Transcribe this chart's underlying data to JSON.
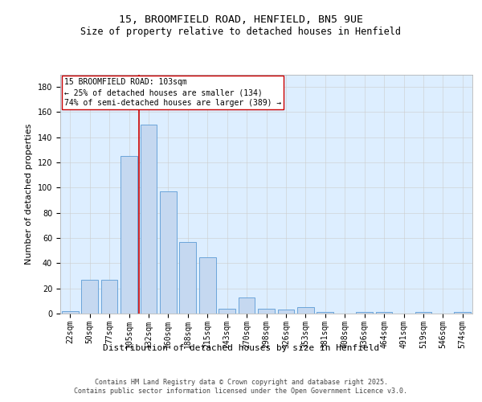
{
  "title_line1": "15, BROOMFIELD ROAD, HENFIELD, BN5 9UE",
  "title_line2": "Size of property relative to detached houses in Henfield",
  "xlabel": "Distribution of detached houses by size in Henfield",
  "ylabel": "Number of detached properties",
  "bar_labels": [
    "22sqm",
    "50sqm",
    "77sqm",
    "105sqm",
    "132sqm",
    "160sqm",
    "188sqm",
    "215sqm",
    "243sqm",
    "270sqm",
    "298sqm",
    "326sqm",
    "353sqm",
    "381sqm",
    "408sqm",
    "436sqm",
    "464sqm",
    "491sqm",
    "519sqm",
    "546sqm",
    "574sqm"
  ],
  "bar_values": [
    2,
    27,
    27,
    125,
    150,
    97,
    57,
    45,
    4,
    13,
    4,
    3,
    5,
    1,
    0,
    1,
    1,
    0,
    1,
    0,
    1
  ],
  "bar_color": "#c5d8f0",
  "bar_edge_color": "#5b9bd5",
  "ylim": [
    0,
    190
  ],
  "yticks": [
    0,
    20,
    40,
    60,
    80,
    100,
    120,
    140,
    160,
    180
  ],
  "vline_x": 3.5,
  "vline_color": "#cc0000",
  "annotation_text": "15 BROOMFIELD ROAD: 103sqm\n← 25% of detached houses are smaller (134)\n74% of semi-detached houses are larger (389) →",
  "annotation_box_color": "#ffffff",
  "annotation_box_edge": "#cc0000",
  "footer_text": "Contains HM Land Registry data © Crown copyright and database right 2025.\nContains public sector information licensed under the Open Government Licence v3.0.",
  "background_color": "#ffffff",
  "grid_color": "#cccccc",
  "ax_facecolor": "#ddeeff",
  "title_fontsize": 9.5,
  "subtitle_fontsize": 8.5,
  "axis_label_fontsize": 8,
  "tick_fontsize": 7,
  "annotation_fontsize": 7,
  "footer_fontsize": 6
}
